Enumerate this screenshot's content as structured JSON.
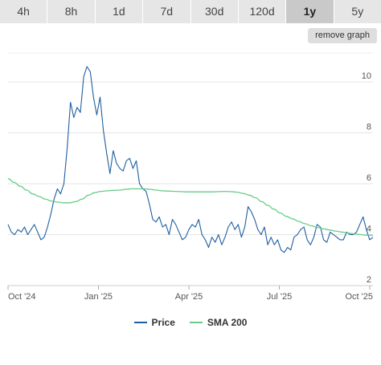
{
  "tabs": [
    {
      "label": "4h",
      "active": false
    },
    {
      "label": "8h",
      "active": false
    },
    {
      "label": "1d",
      "active": false
    },
    {
      "label": "7d",
      "active": false
    },
    {
      "label": "30d",
      "active": false
    },
    {
      "label": "120d",
      "active": false
    },
    {
      "label": "1y",
      "active": true
    },
    {
      "label": "5y",
      "active": false
    }
  ],
  "remove_graph_label": "remove graph",
  "colors": {
    "price": "#1f5fa0",
    "sma": "#66cc88"
  },
  "chart_data": {
    "type": "line",
    "x_ticks": [
      "Oct '24",
      "Jan '25",
      "Apr '25",
      "Jul '25",
      "Oct '25"
    ],
    "y_ticks": [
      2,
      4,
      6,
      8,
      10
    ],
    "ylim": [
      2,
      11.2
    ],
    "grid": true,
    "series": [
      {
        "name": "Price",
        "values": [
          4.4,
          4.1,
          4.0,
          4.2,
          4.1,
          4.3,
          4.0,
          4.2,
          4.4,
          4.1,
          3.8,
          3.9,
          4.3,
          4.8,
          5.4,
          5.8,
          5.6,
          6.0,
          7.4,
          9.2,
          8.6,
          9.0,
          8.8,
          10.2,
          10.6,
          10.4,
          9.4,
          8.7,
          9.4,
          8.1,
          7.2,
          6.4,
          7.3,
          6.8,
          6.6,
          6.5,
          6.9,
          7.0,
          6.6,
          6.9,
          6.0,
          5.8,
          5.7,
          5.2,
          4.6,
          4.5,
          4.7,
          4.3,
          4.4,
          4.0,
          4.6,
          4.4,
          4.1,
          3.8,
          3.9,
          4.2,
          4.4,
          4.3,
          4.6,
          4.0,
          3.8,
          3.5,
          3.9,
          3.7,
          4.0,
          3.6,
          3.9,
          4.3,
          4.5,
          4.2,
          4.4,
          3.9,
          4.3,
          5.1,
          4.9,
          4.6,
          4.2,
          4.0,
          4.3,
          3.6,
          3.9,
          3.6,
          3.8,
          3.4,
          3.3,
          3.5,
          3.4,
          3.9,
          4.0,
          4.2,
          4.3,
          3.8,
          3.6,
          3.9,
          4.4,
          4.3,
          3.8,
          3.7,
          4.1,
          4.0,
          3.9,
          3.8,
          3.8,
          4.1,
          4.0,
          4.0,
          4.1,
          4.4,
          4.7,
          4.2,
          3.8,
          3.9
        ],
        "smoothed": false
      },
      {
        "name": "SMA 200",
        "values": [
          6.2,
          6.05,
          5.9,
          5.75,
          5.6,
          5.5,
          5.4,
          5.32,
          5.28,
          5.25,
          5.25,
          5.3,
          5.4,
          5.55,
          5.65,
          5.7,
          5.72,
          5.74,
          5.75,
          5.78,
          5.8,
          5.8,
          5.8,
          5.78,
          5.75,
          5.72,
          5.71,
          5.7,
          5.69,
          5.68,
          5.68,
          5.68,
          5.68,
          5.68,
          5.69,
          5.7,
          5.69,
          5.67,
          5.62,
          5.55,
          5.45,
          5.3,
          5.15,
          5.0,
          4.85,
          4.72,
          4.62,
          4.52,
          4.43,
          4.35,
          4.28,
          4.23,
          4.18,
          4.14,
          4.1,
          4.06,
          4.03,
          4.0,
          3.98,
          3.98
        ],
        "smoothed": true
      }
    ]
  }
}
